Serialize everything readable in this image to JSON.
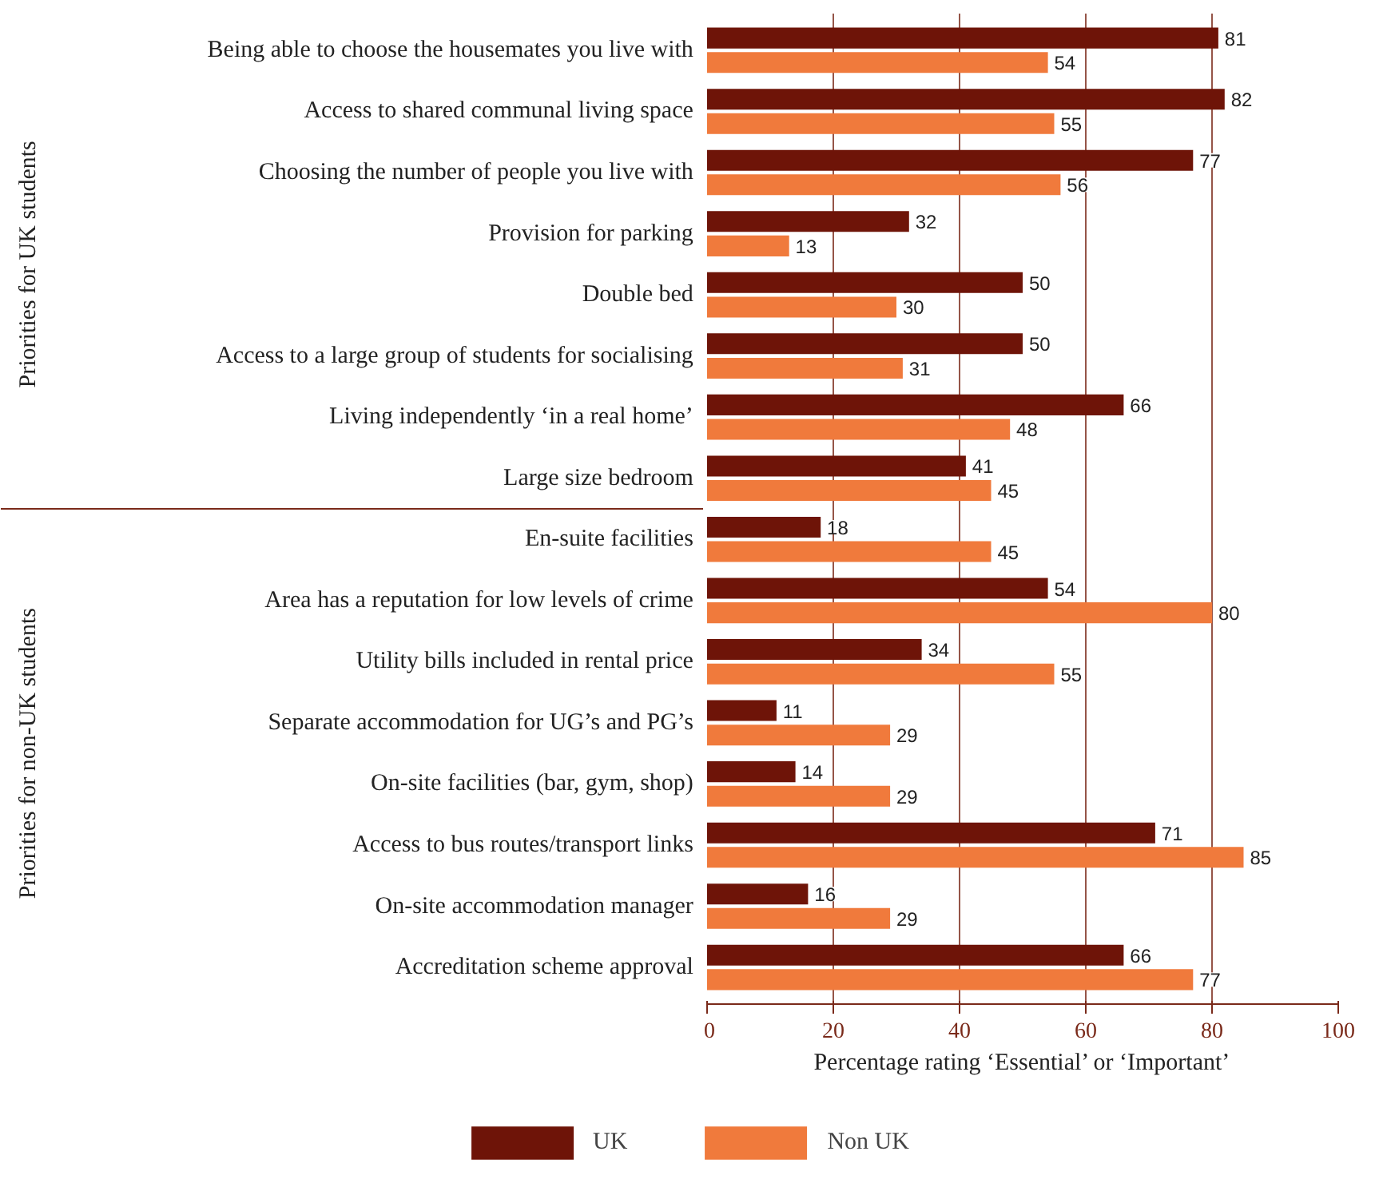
{
  "chart_data": {
    "type": "bar",
    "orientation": "horizontal",
    "xlabel": "Percentage rating ‘Essential’ or ‘Important’",
    "categories": [
      "Being able to choose the housemates you live with",
      "Access to shared communal living space",
      "Choosing the number of people you live with",
      "Provision for parking",
      "Double bed",
      "Access to a large group of students for socialising",
      "Living independently ‘in a real home’",
      "Large size bedroom",
      "En-suite facilities",
      "Area has a reputation for low levels of crime",
      "Utility bills included in rental price",
      "Separate accommodation for UG’s and PG’s",
      "On-site facilities (bar, gym, shop)",
      "Access to bus routes/transport links",
      "On-site accommodation manager",
      "Accreditation scheme approval"
    ],
    "series": [
      {
        "name": "UK",
        "color": "#6e1408",
        "values": [
          81,
          82,
          77,
          32,
          50,
          50,
          66,
          41,
          18,
          54,
          34,
          11,
          14,
          71,
          16,
          66
        ]
      },
      {
        "name": "Non UK",
        "color": "#f07a3c",
        "values": [
          54,
          55,
          56,
          13,
          30,
          31,
          48,
          45,
          45,
          80,
          55,
          29,
          29,
          85,
          29,
          77
        ]
      }
    ],
    "xlim": [
      0,
      100
    ],
    "xticks": [
      0,
      20,
      40,
      60,
      80,
      100
    ],
    "grid": "x",
    "legend": "bottom",
    "data_labels": true,
    "annotations": [
      "Priorities for UK students",
      "Priorities for non-UK students"
    ]
  }
}
